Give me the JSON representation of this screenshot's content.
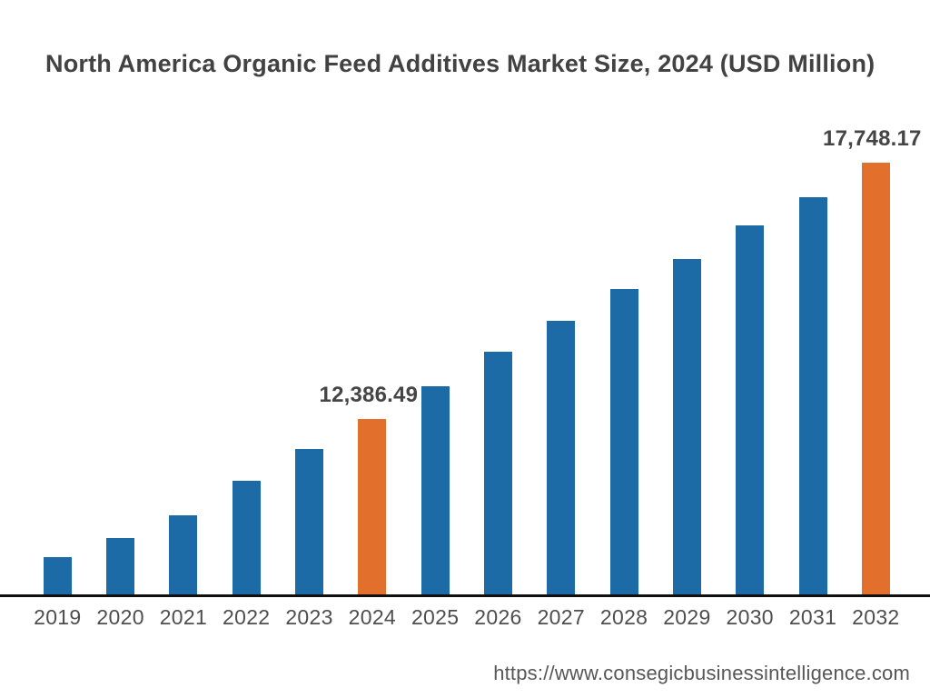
{
  "title": "North America Organic Feed Additives Market Size, 2024 (USD Million)",
  "source_url": "https://www.consegicbusinessintelligence.com",
  "colors": {
    "bar_default": "#1c6ba6",
    "bar_highlight": "#e2702c",
    "title_text": "#424242",
    "tick_text": "#4e4e4e",
    "data_label_text": "#454545",
    "axis_line": "#0f0f0f",
    "url_text": "#575757"
  },
  "chart_data": {
    "type": "bar",
    "title": "North America Organic Feed Additives Market Size, 2024 (USD Million)",
    "xlabel": "",
    "ylabel": "USD Million",
    "categories": [
      "2019",
      "2020",
      "2021",
      "2022",
      "2023",
      "2024",
      "2025",
      "2026",
      "2027",
      "2028",
      "2029",
      "2030",
      "2031",
      "2032"
    ],
    "values": [
      9496,
      9896,
      10371,
      11094,
      11759,
      12386.49,
      13071,
      13794,
      14440,
      15105,
      15733,
      16436,
      17026,
      17748.17
    ],
    "highlight_categories": [
      "2024",
      "2032"
    ],
    "data_labels": [
      {
        "category": "2024",
        "text": "12,386.49"
      },
      {
        "category": "2032",
        "text": "17,748.17"
      }
    ],
    "ylim": [
      8717,
      18300
    ],
    "axis_truncated": true,
    "grid": false,
    "legend": false
  }
}
